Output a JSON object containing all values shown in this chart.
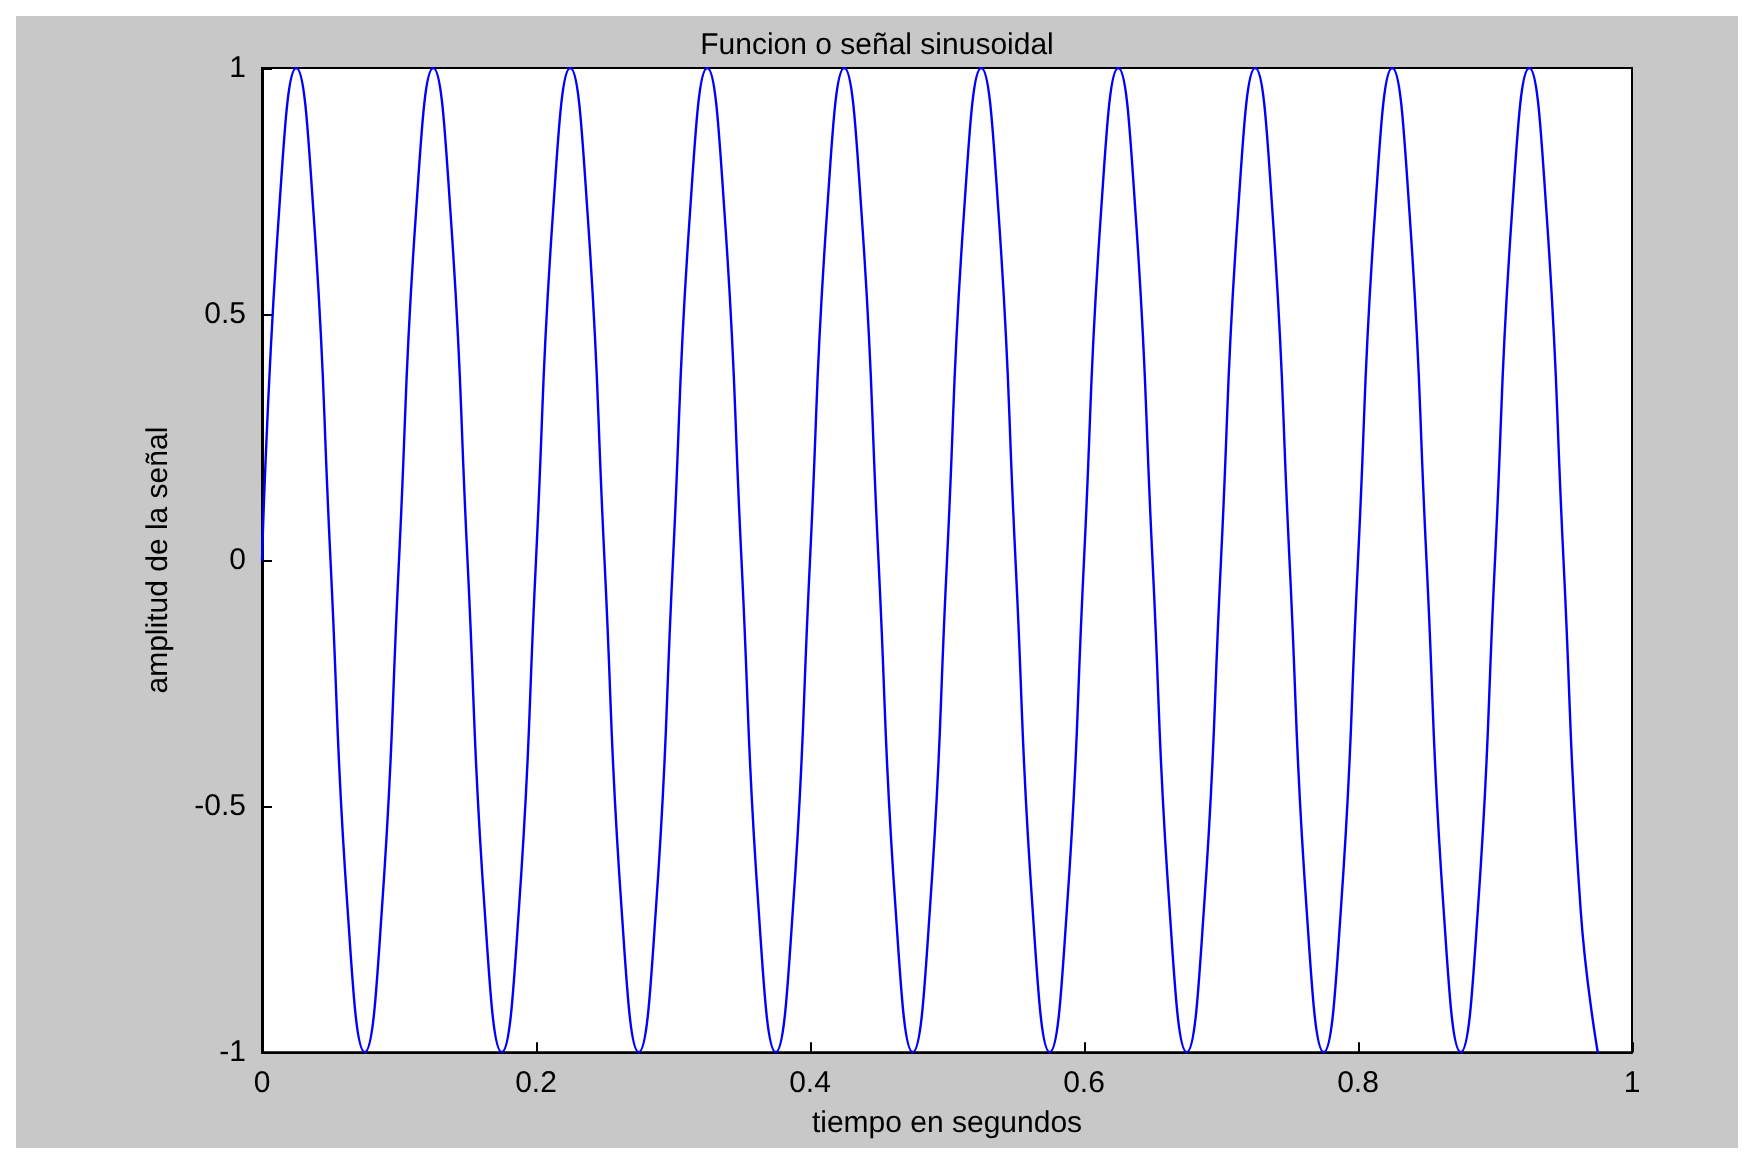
{
  "chart_data": {
    "type": "line",
    "title": "Funcion o señal sinusoidal",
    "xlabel": "tiempo en segundos",
    "ylabel": "amplitud de la señal",
    "x": [
      0,
      0.0125,
      0.025,
      0.0375,
      0.05,
      0.0625,
      0.075,
      0.0875,
      0.1,
      0.1125,
      0.125,
      0.1375,
      0.15,
      0.1625,
      0.175,
      0.1875,
      0.2,
      0.2125,
      0.225,
      0.2375,
      0.25,
      0.2625,
      0.275,
      0.2875,
      0.3,
      0.3125,
      0.325,
      0.3375,
      0.35,
      0.3625,
      0.375,
      0.3875,
      0.4,
      0.4125,
      0.425,
      0.4375,
      0.45,
      0.4625,
      0.475,
      0.4875,
      0.5,
      0.5125,
      0.525,
      0.5375,
      0.55,
      0.5625,
      0.575,
      0.5875,
      0.6,
      0.6125,
      0.625,
      0.6375,
      0.65,
      0.6625,
      0.675,
      0.6875,
      0.7,
      0.7125,
      0.725,
      0.7375,
      0.75,
      0.7625,
      0.775,
      0.7875,
      0.8,
      0.8125,
      0.825,
      0.8375,
      0.85,
      0.8625,
      0.875,
      0.8875,
      0.9,
      0.9125,
      0.925,
      0.9375,
      0.95,
      0.9625,
      0.975
    ],
    "series": [
      {
        "color": "#0000ff",
        "values": [
          0,
          0.71,
          1,
          0.71,
          0,
          -0.71,
          -1,
          -0.71,
          0,
          0.71,
          1,
          0.71,
          0,
          -0.71,
          -1,
          -0.71,
          0,
          0.71,
          1,
          0.71,
          0,
          -0.71,
          -1,
          -0.71,
          0,
          0.71,
          1,
          0.71,
          0,
          -0.71,
          -1,
          -0.71,
          0,
          0.71,
          1,
          0.71,
          0,
          -0.71,
          -1,
          -0.71,
          0,
          0.71,
          1,
          0.71,
          0,
          -0.71,
          -1,
          -0.71,
          0,
          0.71,
          1,
          0.71,
          0,
          -0.71,
          -1,
          -0.71,
          0,
          0.71,
          1,
          0.71,
          0,
          -0.71,
          -1,
          -0.71,
          0,
          0.71,
          1,
          0.71,
          0,
          -0.71,
          -1,
          -0.71,
          0,
          0.71,
          1,
          0.71,
          0,
          -0.71,
          -1
        ]
      }
    ],
    "xlim": [
      0,
      1
    ],
    "xticks": [
      0,
      0.2,
      0.4,
      0.6,
      0.8,
      1
    ],
    "ylim": [
      -1,
      1
    ],
    "yticks": [
      -1,
      -0.5,
      0,
      0.5,
      1
    ],
    "grid": false,
    "marker": "none",
    "line_style": "solid"
  }
}
